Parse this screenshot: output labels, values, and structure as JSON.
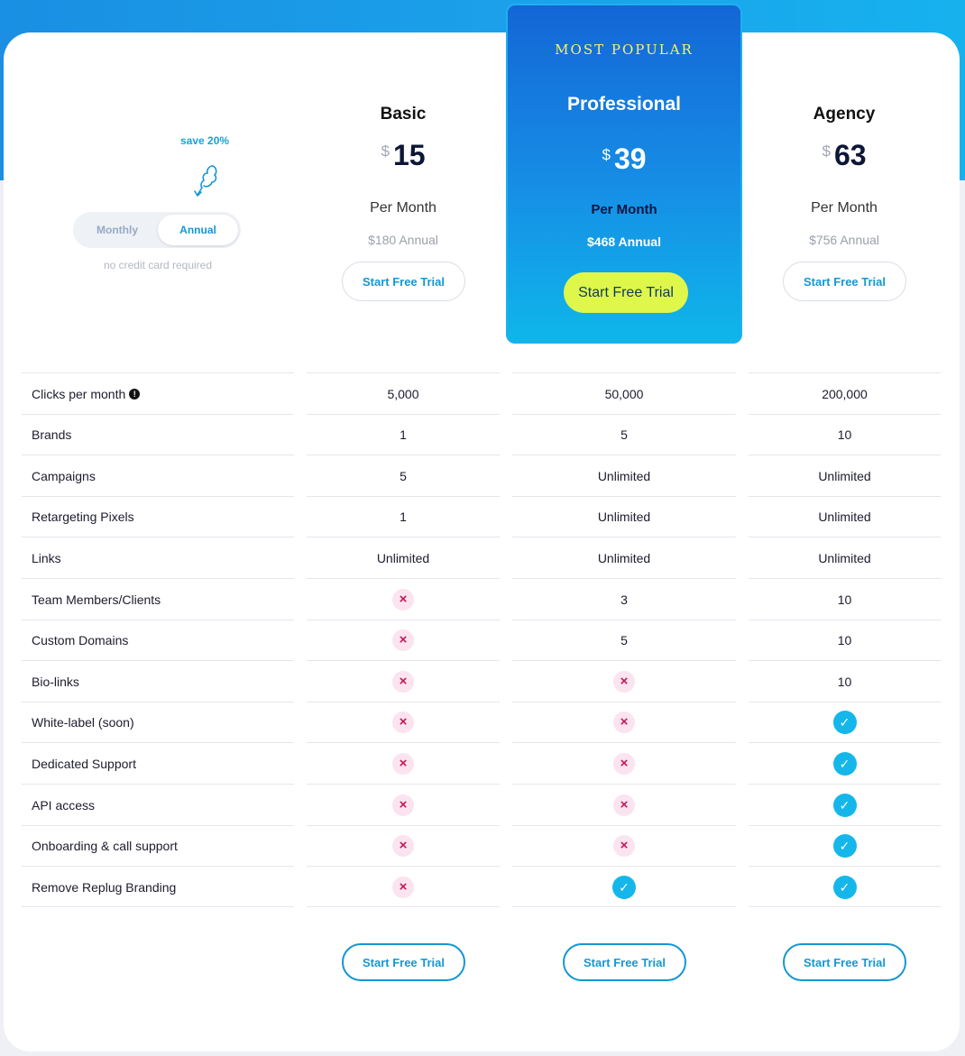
{
  "toggle": {
    "save_badge": "save 20%",
    "monthly_label": "Monthly",
    "annual_label": "Annual",
    "no_credit_card": "no credit card required"
  },
  "plans": [
    {
      "name": "Basic",
      "currency": "$",
      "price": "15",
      "per_month": "Per Month",
      "annual": "$180 Annual",
      "cta": "Start Free Trial"
    },
    {
      "name": "Professional",
      "badge": "MOST POPULAR",
      "currency": "$",
      "price": "39",
      "per_month": "Per Month",
      "annual": "$468 Annual",
      "cta": "Start Free Trial"
    },
    {
      "name": "Agency",
      "currency": "$",
      "price": "63",
      "per_month": "Per Month",
      "annual": "$756 Annual",
      "cta": "Start Free Trial"
    }
  ],
  "features": [
    {
      "label": "Clicks per month",
      "values": [
        "5,000",
        "50,000",
        "200,000"
      ]
    },
    {
      "label": "Brands",
      "values": [
        "1",
        "5",
        "10"
      ]
    },
    {
      "label": "Campaigns",
      "values": [
        "5",
        "Unlimited",
        "Unlimited"
      ]
    },
    {
      "label": "Retargeting Pixels",
      "values": [
        "1",
        "Unlimited",
        "Unlimited"
      ]
    },
    {
      "label": "Links",
      "values": [
        "Unlimited",
        "Unlimited",
        "Unlimited"
      ]
    },
    {
      "label": "Team Members/Clients",
      "values": [
        "x",
        "3",
        "10"
      ]
    },
    {
      "label": "Custom Domains",
      "values": [
        "x",
        "5",
        "10"
      ]
    },
    {
      "label": "Bio-links",
      "values": [
        "x",
        "x",
        "10"
      ]
    },
    {
      "label": "White-label (soon)",
      "values": [
        "x",
        "x",
        "check"
      ]
    },
    {
      "label": "Dedicated Support",
      "values": [
        "x",
        "x",
        "check"
      ]
    },
    {
      "label": "API access",
      "values": [
        "x",
        "x",
        "check"
      ]
    },
    {
      "label": "Onboarding & call support",
      "values": [
        "x",
        "x",
        "check"
      ]
    },
    {
      "label": "Remove Replug Branding",
      "values": [
        "x",
        "check",
        "check"
      ]
    }
  ],
  "bottom_cta": "Start Free Trial",
  "colors": {
    "accent": "#1597d4",
    "popular_top": "#1466d6",
    "popular_bottom": "#0fb6ea",
    "cta_highlight": "#dff74a",
    "x_bg": "#fbe3ef",
    "check_bg": "#15b7ea"
  }
}
